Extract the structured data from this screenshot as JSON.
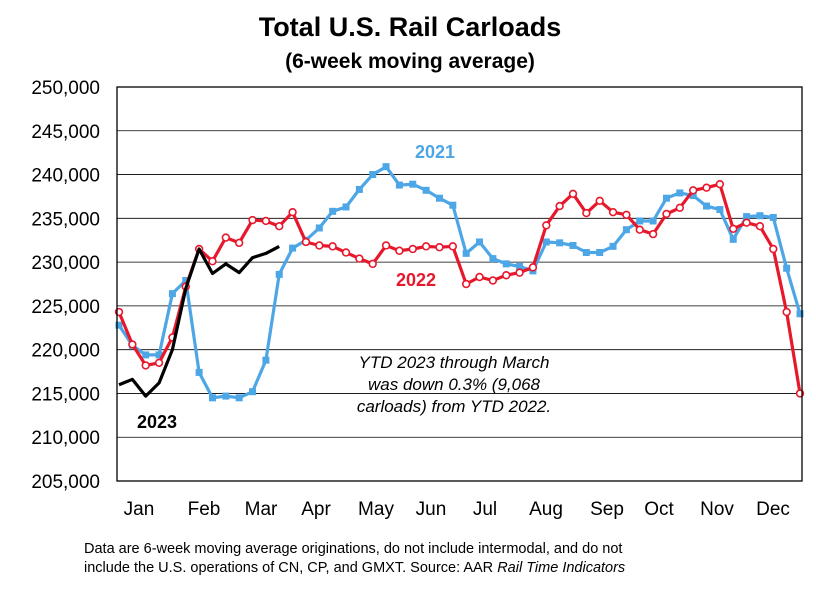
{
  "chart_data": {
    "type": "line",
    "title": "Total U.S. Rail Carloads",
    "subtitle": "(6-week moving average)",
    "ylim": [
      205000,
      250000
    ],
    "y_ticks": [
      "250,000",
      "245,000",
      "240,000",
      "235,000",
      "230,000",
      "225,000",
      "220,000",
      "215,000",
      "210,000",
      "205,000"
    ],
    "y_tick_values": [
      250000,
      245000,
      240000,
      235000,
      230000,
      225000,
      220000,
      215000,
      210000,
      205000
    ],
    "x_ticks": [
      "Jan",
      "Feb",
      "Mar",
      "Apr",
      "May",
      "Jun",
      "Jul",
      "Aug",
      "Sep",
      "Oct",
      "Nov",
      "Dec"
    ],
    "x_range": [
      1,
      52
    ],
    "grid": "horizontal",
    "series": [
      {
        "name": "2021",
        "color": "#4da6e6",
        "marker": "filled-square",
        "x": [
          1,
          2,
          3,
          4,
          5,
          6,
          7,
          8,
          9,
          10,
          11,
          12,
          13,
          14,
          15,
          16,
          17,
          18,
          19,
          20,
          21,
          22,
          23,
          24,
          25,
          26,
          27,
          28,
          29,
          30,
          31,
          32,
          33,
          34,
          35,
          36,
          37,
          38,
          39,
          40,
          41,
          42,
          43,
          44,
          45,
          46,
          47,
          48,
          49,
          50,
          51,
          52
        ],
        "values": [
          222800,
          220500,
          219400,
          219400,
          226400,
          227900,
          217400,
          214500,
          214700,
          214500,
          215200,
          218800,
          228600,
          231600,
          232500,
          233900,
          235800,
          236300,
          238300,
          240000,
          240900,
          238800,
          238900,
          238200,
          237300,
          236500,
          231000,
          232300,
          230400,
          229800,
          229500,
          229000,
          232300,
          232200,
          231900,
          231100,
          231100,
          231800,
          233700,
          234700,
          234700,
          237300,
          237900,
          237600,
          236400,
          236000,
          232600,
          235200,
          235300,
          235100,
          229300,
          224100
        ]
      },
      {
        "name": "2022",
        "color": "#e8182c",
        "marker": "open-circle",
        "x": [
          1,
          2,
          3,
          4,
          5,
          6,
          7,
          8,
          9,
          10,
          11,
          12,
          13,
          14,
          15,
          16,
          17,
          18,
          19,
          20,
          21,
          22,
          23,
          24,
          25,
          26,
          27,
          28,
          29,
          30,
          31,
          32,
          33,
          34,
          35,
          36,
          37,
          38,
          39,
          40,
          41,
          42,
          43,
          44,
          45,
          46,
          47,
          48,
          49,
          50,
          51,
          52
        ],
        "values": [
          224300,
          220600,
          218200,
          218500,
          221400,
          227200,
          231500,
          230100,
          232800,
          232200,
          234800,
          234700,
          234100,
          235700,
          232300,
          231900,
          231800,
          231100,
          230400,
          229800,
          231900,
          231300,
          231500,
          231800,
          231700,
          231800,
          227500,
          228300,
          227900,
          228500,
          228800,
          229400,
          234200,
          236400,
          237800,
          235600,
          237000,
          235700,
          235400,
          233700,
          233200,
          235500,
          236200,
          238200,
          238500,
          238900,
          233800,
          234500,
          234100,
          231500,
          224300,
          215000
        ]
      },
      {
        "name": "2023",
        "color": "#000000",
        "marker": "none",
        "x": [
          1,
          2,
          3,
          4,
          5,
          6,
          7,
          8,
          9,
          10,
          11,
          12,
          13
        ],
        "values": [
          216000,
          216600,
          214700,
          216200,
          220000,
          227000,
          231500,
          228700,
          229800,
          228800,
          230500,
          231000,
          231800
        ]
      }
    ],
    "annotation": "YTD 2023 through March was down 0.3% (9,068 carloads) from YTD 2022.",
    "annotation_lines": [
      "YTD 2023 through March",
      "was down 0.3% (9,068",
      "carloads) from YTD 2022."
    ]
  },
  "footnote": {
    "line1": "Data are 6-week moving average originations, do not include intermodal, and do not",
    "line2_prefix": "include the U.S. operations of CN, CP, and GMXT.   Source: AAR ",
    "line2_source": "Rail Time Indicators"
  }
}
